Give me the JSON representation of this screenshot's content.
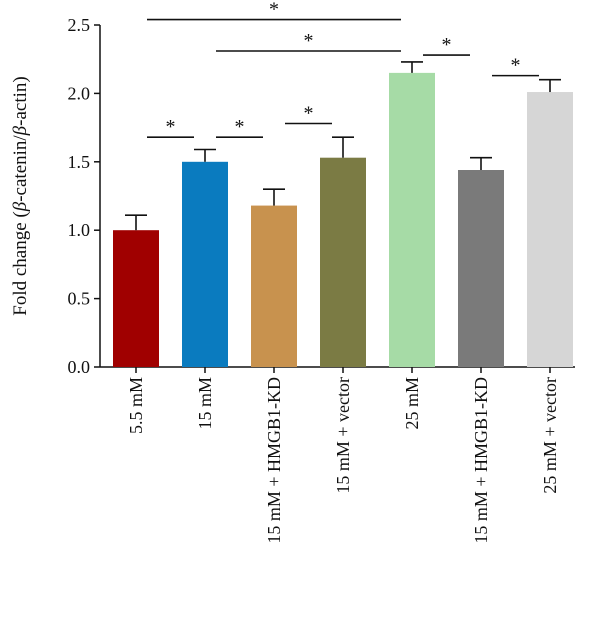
{
  "chart_data": {
    "type": "bar",
    "ylabel_parts": [
      {
        "text": "Fold change (",
        "italic": false
      },
      {
        "text": "β",
        "italic": true
      },
      {
        "text": "-catenin/",
        "italic": false
      },
      {
        "text": "β",
        "italic": true
      },
      {
        "text": "-actin)",
        "italic": false
      }
    ],
    "xlabel": "",
    "ylim": [
      0,
      2.5
    ],
    "yticks": [
      "0.0",
      "0.5",
      "1.0",
      "1.5",
      "2.0",
      "2.5"
    ],
    "grid": false,
    "categories": [
      "5.5 mM",
      "15 mM",
      "15 mM + HMGB1-KD",
      "15 mM + vector",
      "25 mM",
      "15 mM + HMGB1-KD",
      "25 mM + vector"
    ],
    "values": [
      1.0,
      1.5,
      1.18,
      1.53,
      2.15,
      1.44,
      2.01
    ],
    "errors": [
      0.11,
      0.09,
      0.12,
      0.15,
      0.08,
      0.09,
      0.09
    ],
    "colors": [
      "#a00000",
      "#0a7bbf",
      "#c8924e",
      "#7b7b44",
      "#a6dba6",
      "#7a7a7a",
      "#d6d6d6"
    ],
    "significance": [
      {
        "from": 0,
        "to": 1,
        "label": "*",
        "level": 1.68
      },
      {
        "from": 1,
        "to": 2,
        "label": "*",
        "level": 1.68
      },
      {
        "from": 2,
        "to": 3,
        "label": "*",
        "level": 1.78
      },
      {
        "from": 4,
        "to": 5,
        "label": "*",
        "level": 2.28
      },
      {
        "from": 5,
        "to": 6,
        "label": "*",
        "level": 2.13
      },
      {
        "from": 1,
        "to": 4,
        "label": "*",
        "level": 2.31
      },
      {
        "from": 0,
        "to": 4,
        "label": "*",
        "level": 2.54
      }
    ]
  }
}
